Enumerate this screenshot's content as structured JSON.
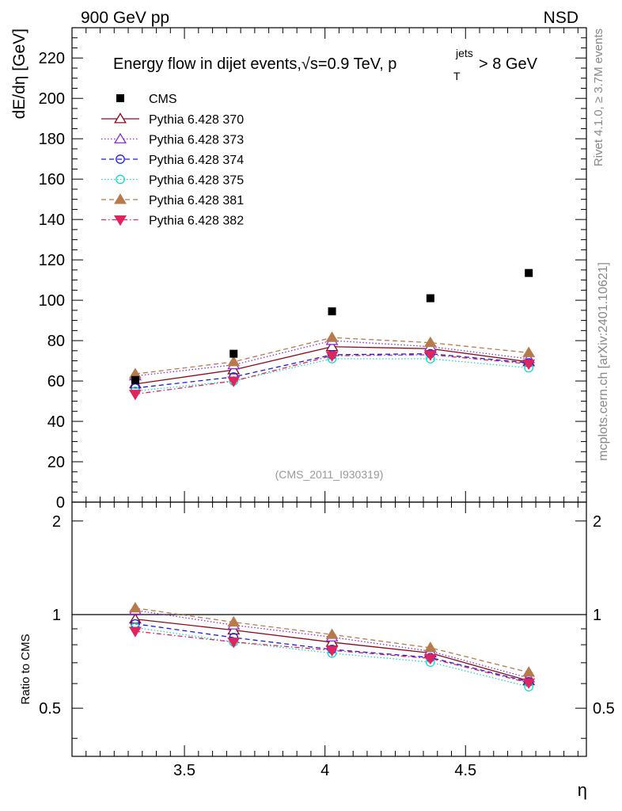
{
  "header": {
    "left": "900 GeV pp",
    "right": "NSD"
  },
  "side_labels": {
    "rivet": "Rivet 4.1.0, ≥ 3.7M events",
    "mcplots": "mcplots.cern.ch [arXiv:2401.10621]"
  },
  "chart_data": {
    "type": "line",
    "title": "Energy flow in dijet events, √s=0.9 TeV, p_T^jets > 8 GeV",
    "title_parts": {
      "main": "Energy flow in dijet events,",
      "sqrt": "√",
      "s_eq": "s=0.9 TeV, p",
      "sup": "jets",
      "sub": "T",
      "tail": "> 8 GeV"
    },
    "xlabel": "η",
    "ylabel": "dE/dη [GeV]",
    "ratio_ylabel": "Ratio to CMS",
    "analysis_id": "(CMS_2011_I930319)",
    "xlim": [
      3.1,
      4.93
    ],
    "ylim": [
      0,
      235
    ],
    "ratio_ylim": [
      0.35,
      2.3
    ],
    "ratio_yticks": [
      0.5,
      1,
      2
    ],
    "ratio_ytick_labels": [
      "0.5",
      "1",
      "2"
    ],
    "yticks": [
      0,
      20,
      40,
      60,
      80,
      100,
      120,
      140,
      160,
      180,
      200,
      220
    ],
    "ytick_labels": [
      "0",
      "20",
      "40",
      "60",
      "80",
      "100",
      "120",
      "140",
      "160",
      "180",
      "200",
      "220"
    ],
    "xticks": [
      3.5,
      4,
      4.5
    ],
    "xtick_labels": [
      "3.5",
      "4",
      "4.5"
    ],
    "x": [
      3.325,
      3.675,
      4.025,
      4.375,
      4.725
    ],
    "data": {
      "name": "CMS",
      "values": [
        60.5,
        73.5,
        94.5,
        101,
        113.5
      ]
    },
    "series": [
      {
        "name": "Pythia 6.428 370",
        "values": [
          58.5,
          65.5,
          77,
          76,
          69.5
        ],
        "color": "#8b0a1a",
        "dash": "",
        "marker": "triangle-up-open"
      },
      {
        "name": "Pythia 6.428 373",
        "values": [
          62.5,
          68,
          80,
          77,
          71
        ],
        "color": "#8a2be2",
        "dash": "1.5,2.5",
        "marker": "triangle-up-open"
      },
      {
        "name": "Pythia 6.428 374",
        "values": [
          56.5,
          62,
          73,
          73.5,
          69
        ],
        "color": "#1a1ae6",
        "dash": "6,4",
        "marker": "circle-open"
      },
      {
        "name": "Pythia 6.428 375",
        "values": [
          55,
          60,
          71,
          71,
          66.5
        ],
        "color": "#14d9c8",
        "dash": "1.5,2.5",
        "marker": "circle-open"
      },
      {
        "name": "Pythia 6.428 381",
        "values": [
          63.5,
          69.5,
          81.5,
          79,
          74
        ],
        "color": "#b87a4b",
        "dash": "6,4",
        "marker": "triangle-up-filled"
      },
      {
        "name": "Pythia 6.428 382",
        "values": [
          53.5,
          60,
          72.5,
          73,
          68.5
        ],
        "color": "#e0245e",
        "dash": "6,3,1.5,3",
        "marker": "triangle-down-filled"
      }
    ]
  }
}
